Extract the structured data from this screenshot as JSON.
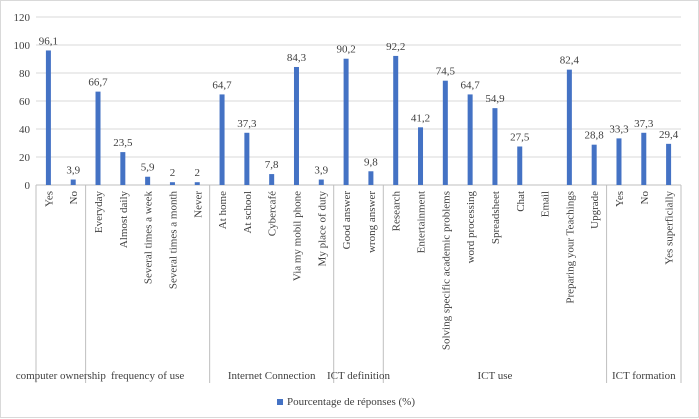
{
  "chart_data": {
    "type": "bar",
    "title": "",
    "xlabel": "",
    "ylabel": "",
    "ylim": [
      0,
      120
    ],
    "yticks": [
      0,
      20,
      40,
      60,
      80,
      100,
      120
    ],
    "grid": true,
    "legend_placement": "bottom",
    "bar_color": "#4472c4",
    "series": [
      {
        "name": "Pourcentage de réponses (%)",
        "color": "#4472c4",
        "values": [
          96.1,
          3.9,
          66.7,
          23.5,
          5.9,
          2,
          2,
          64.7,
          37.3,
          7.8,
          84.3,
          3.9,
          90.2,
          9.8,
          92.2,
          41.2,
          74.5,
          64.7,
          54.9,
          27.5,
          null,
          82.4,
          28.8,
          33.3,
          37.3,
          29.4
        ]
      }
    ],
    "categories": [
      "Yes",
      "No",
      "Everyday",
      "Almost daily",
      "Several times a week",
      "Several times a month",
      "Never",
      "At home",
      "At school",
      "Cybercafé",
      "Via my mobil phone",
      "My place of duty",
      "Good answer",
      "wrong answer",
      "Research",
      "Entertainment",
      "Solving specific academic problems",
      "word processing",
      "Spreadsheet",
      "Chat",
      "Email",
      "Preparing your Teachings",
      "Upgrade",
      "Yes",
      "No",
      "Yes superficially"
    ],
    "data_labels": [
      "96,1",
      "3,9",
      "66,7",
      "23,5",
      "5,9",
      "2",
      "2",
      "64,7",
      "37,3",
      "7,8",
      "84,3",
      "3,9",
      "90,2",
      "9,8",
      "92,2",
      "41,2",
      "74,5",
      "64,7",
      "54,9",
      "27,5",
      "",
      "82,4",
      "28,8",
      "33,3",
      "37,3",
      "29,4"
    ],
    "groups": [
      {
        "label": "computer ownership",
        "count": 2
      },
      {
        "label": "frequency of use",
        "count": 5
      },
      {
        "label": "Internet Connection",
        "count": 5
      },
      {
        "label": "ICT definition",
        "count": 2
      },
      {
        "label": "ICT use",
        "count": 9
      },
      {
        "label": "ICT formation",
        "count": 3
      }
    ]
  }
}
